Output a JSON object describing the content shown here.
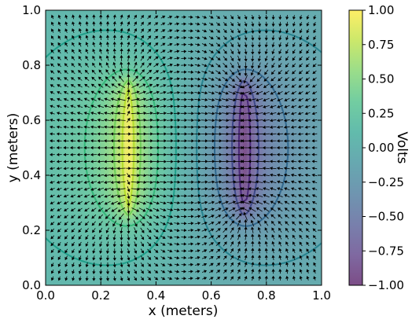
{
  "chart_data": {
    "type": "heatmap",
    "description_plot": "filled contour of electric potential with overlaid electric field arrows",
    "xlabel": "x (meters)",
    "ylabel": "y (meters)",
    "xlim": [
      0.0,
      1.0
    ],
    "ylim": [
      0.0,
      1.0
    ],
    "x_ticks": [
      "0.0",
      "0.2",
      "0.4",
      "0.6",
      "0.8",
      "1.0"
    ],
    "y_ticks": [
      "0.0",
      "0.2",
      "0.4",
      "0.6",
      "0.8",
      "1.0"
    ],
    "colorbar": {
      "label": "Volts",
      "range": [
        -1.0,
        1.0
      ],
      "ticks": [
        "1.00",
        "0.75",
        "0.50",
        "0.25",
        "0.00",
        "−0.25",
        "−0.50",
        "−0.75",
        "−1.00"
      ],
      "colormap": "viridis"
    },
    "sources": [
      {
        "x": 0.3,
        "y_start": 0.25,
        "y_end": 0.75,
        "potential": 1.0
      },
      {
        "x": 0.72,
        "y_start": 0.25,
        "y_end": 0.75,
        "potential": -1.0
      }
    ],
    "contour_levels": [
      0.8,
      0.6,
      0.3,
      0.1,
      -0.1,
      -0.3,
      -0.6,
      -0.8
    ],
    "arrow_grid_spacing": 0.025,
    "grid": false
  },
  "colors": {
    "viridis": [
      "#440154",
      "#482878",
      "#3e4989",
      "#31688e",
      "#26828e",
      "#1f9e89",
      "#35b779",
      "#6ece58",
      "#b5de2b",
      "#fde725"
    ],
    "arrow": "#000000",
    "alpha": 0.7
  }
}
